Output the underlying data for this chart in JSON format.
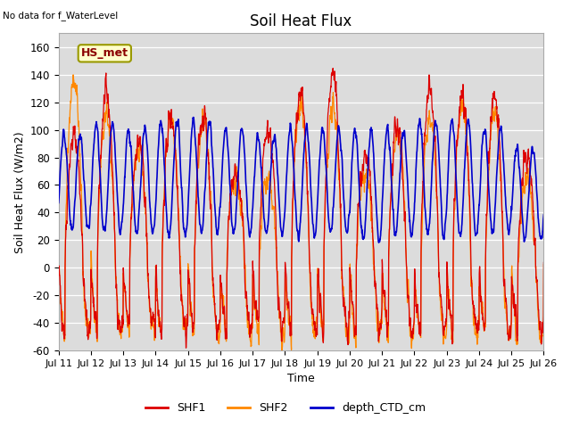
{
  "title": "Soil Heat Flux",
  "xlabel": "Time",
  "ylabel": "Soil Heat Flux (W/m2)",
  "top_left_note": "No data for f_WaterLevel",
  "legend_label": "HS_met",
  "ylim": [
    -60,
    170
  ],
  "yticks": [
    -60,
    -40,
    -20,
    0,
    20,
    40,
    60,
    80,
    100,
    120,
    140,
    160
  ],
  "xtick_labels": [
    "Jul 11",
    "Jul 12",
    "Jul 13",
    "Jul 14",
    "Jul 15",
    "Jul 16",
    "Jul 17",
    "Jul 18",
    "Jul 19",
    "Jul 20",
    "Jul 21",
    "Jul 22",
    "Jul 23",
    "Jul 24",
    "Jul 25",
    "Jul 26"
  ],
  "series_colors": {
    "SHF1": "#dd0000",
    "SHF2": "#ff8800",
    "depth_CTD_cm": "#0000cc"
  },
  "bg_color": "#dcdcdc",
  "n_days": 15,
  "n_per_day": 144,
  "seed": 42
}
